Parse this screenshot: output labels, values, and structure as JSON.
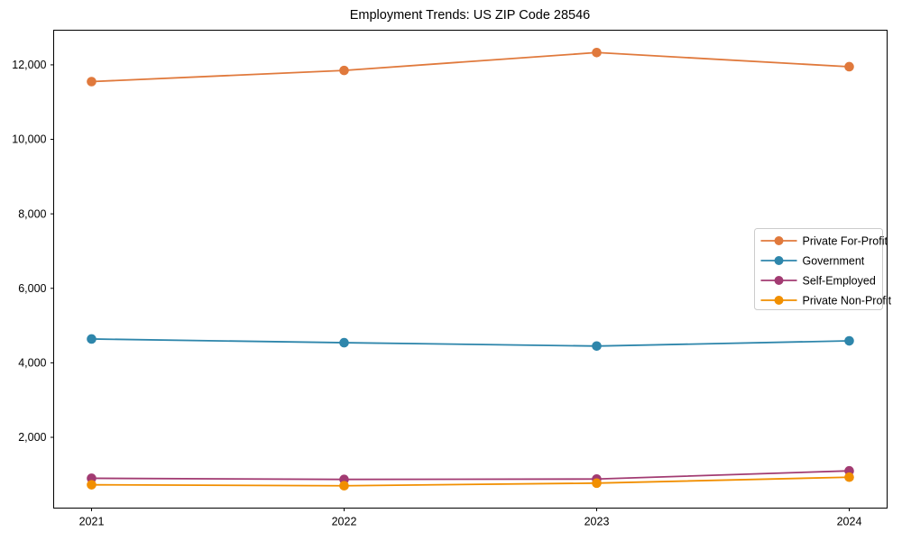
{
  "chart_data": {
    "type": "line",
    "title": "Employment Trends: US ZIP Code 28546",
    "xlabel": "",
    "ylabel": "",
    "x": [
      2021,
      2022,
      2023,
      2024
    ],
    "x_tick_labels": [
      "2021",
      "2022",
      "2023",
      "2024"
    ],
    "series": [
      {
        "name": "Private For-Profit",
        "color": "#E0793C",
        "values": [
          11550,
          11850,
          12330,
          11950
        ]
      },
      {
        "name": "Government",
        "color": "#2E86AB",
        "values": [
          4640,
          4540,
          4450,
          4590
        ]
      },
      {
        "name": "Self-Employed",
        "color": "#A23B72",
        "values": [
          900,
          870,
          880,
          1100
        ]
      },
      {
        "name": "Private Non-Profit",
        "color": "#F18F01",
        "values": [
          725,
          700,
          770,
          930
        ]
      }
    ],
    "yticks": [
      2000,
      4000,
      6000,
      8000,
      10000,
      12000
    ],
    "ytick_labels": [
      "2,000",
      "4,000",
      "6,000",
      "8,000",
      "10,000",
      "12,000"
    ],
    "xlim": [
      2020.85,
      2024.15
    ],
    "ylim": [
      100,
      12930
    ],
    "grid": false,
    "legend": {
      "position": "center-right",
      "border_color": "#cccccc",
      "background": "#ffffff",
      "labels": [
        "Private For-Profit",
        "Government",
        "Self-Employed",
        "Private Non-Profit"
      ]
    },
    "plot_background": "#ffffff",
    "frame_color": "#000000"
  }
}
